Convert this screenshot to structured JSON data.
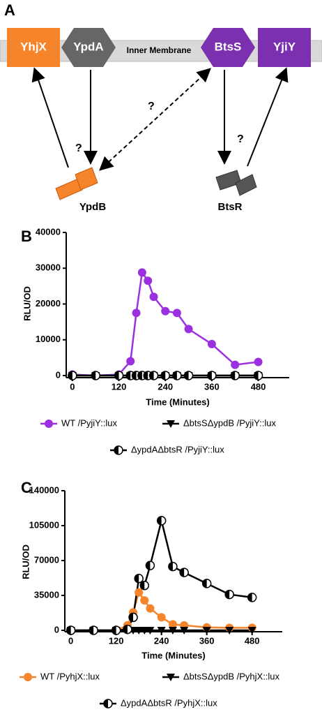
{
  "diagram": {
    "panel": "A",
    "proteins": [
      "YhjX",
      "YpdA",
      "BtsS",
      "YjiY"
    ],
    "membrane": "Inner Membrane",
    "question_marks": [
      "?",
      "?",
      "?"
    ],
    "regulators": [
      "YpdB",
      "BtsR"
    ]
  },
  "chart_data": [
    {
      "type": "line",
      "panel": "B",
      "ylabel": "RLU/OD",
      "xlabel": "Time (Minutes)",
      "x": [
        0,
        60,
        120,
        150,
        165,
        180,
        195,
        210,
        240,
        270,
        300,
        360,
        420,
        480
      ],
      "xlim": [
        -16,
        560
      ],
      "xticks": [
        0,
        120,
        240,
        360,
        480
      ],
      "ylim": [
        0,
        40000
      ],
      "yticks": [
        0,
        10000,
        20000,
        30000,
        40000
      ],
      "series": [
        {
          "name": "WT /PyjiY::lux",
          "color": "#9b30e0",
          "marker": "circle",
          "values": [
            300,
            0,
            300,
            4000,
            17500,
            28800,
            26500,
            22000,
            18000,
            17500,
            13000,
            8800,
            3000,
            3800
          ]
        },
        {
          "name": "ΔbtsSΔypdB /PyjiY::lux",
          "color": "#000000",
          "marker": "triangle-down",
          "values": [
            0,
            0,
            0,
            0,
            0,
            0,
            0,
            0,
            0,
            0,
            0,
            0,
            0,
            0
          ]
        },
        {
          "name": "ΔypdAΔbtsR /PyjiY::lux",
          "color": "#000000",
          "marker": "half-circle",
          "values": [
            0,
            0,
            0,
            0,
            0,
            0,
            0,
            0,
            0,
            0,
            0,
            0,
            0,
            0
          ]
        }
      ]
    },
    {
      "type": "line",
      "panel": "C",
      "ylabel": "RLU/OD",
      "xlabel": "Time (Minutes)",
      "x": [
        0,
        60,
        120,
        150,
        165,
        180,
        195,
        210,
        240,
        270,
        300,
        360,
        420,
        480
      ],
      "xlim": [
        -16,
        560
      ],
      "xticks": [
        0,
        120,
        240,
        360,
        480
      ],
      "ylim": [
        0,
        140000
      ],
      "yticks": [
        0,
        35000,
        70000,
        105000,
        140000
      ],
      "series": [
        {
          "name": "WT /PyhjX::lux",
          "color": "#f5842a",
          "marker": "circle",
          "values": [
            0,
            0,
            0,
            5000,
            18000,
            38000,
            30000,
            22000,
            13000,
            6000,
            5000,
            3000,
            2500,
            2500
          ]
        },
        {
          "name": "ΔbtsSΔypdB /PyhjX::lux",
          "color": "#000000",
          "marker": "triangle-down",
          "values": [
            0,
            0,
            0,
            0,
            0,
            0,
            0,
            0,
            0,
            0,
            0,
            0,
            0,
            0
          ]
        },
        {
          "name": "ΔypdAΔbtsR /PyhjX::lux",
          "color": "#000000",
          "marker": "half-circle",
          "values": [
            0,
            0,
            0,
            1000,
            13000,
            52000,
            45000,
            65000,
            110000,
            64000,
            58000,
            47000,
            36000,
            33000
          ]
        }
      ]
    }
  ]
}
